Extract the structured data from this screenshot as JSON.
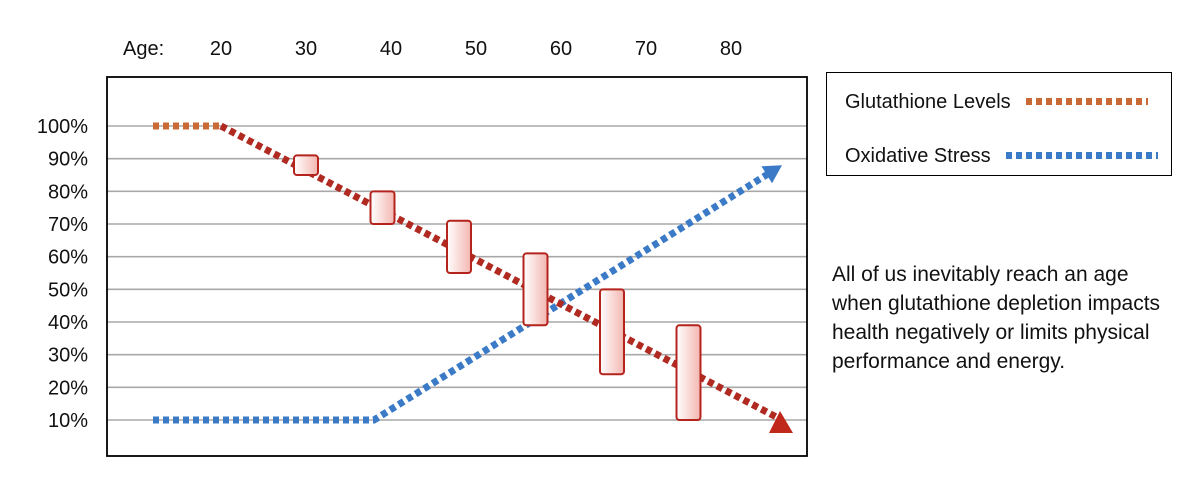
{
  "chart_data": {
    "type": "line",
    "xlabel": "Age:",
    "x_ticks": [
      20,
      30,
      40,
      50,
      60,
      70,
      80
    ],
    "xlim": [
      12,
      86
    ],
    "ylim": [
      0,
      100
    ],
    "y_ticks": [
      10,
      20,
      30,
      40,
      50,
      60,
      70,
      80,
      90,
      100
    ],
    "y_tick_labels": [
      "10%",
      "20%",
      "30%",
      "40%",
      "50%",
      "60%",
      "70%",
      "80%",
      "90%",
      "100%"
    ],
    "grid": true,
    "legend_position": "top-right, outside",
    "series": [
      {
        "name": "Glutathione Levels",
        "points": [
          [
            12,
            100
          ],
          [
            20,
            100
          ],
          [
            86,
            10
          ]
        ],
        "dashed_segments": [
          {
            "from": [
              12,
              100
            ],
            "to": [
              20,
              100
            ],
            "color": "#c96a36"
          },
          {
            "from": [
              20,
              100
            ],
            "to": [
              86,
              10
            ],
            "color": "#b02a22"
          }
        ],
        "end_marker": "triangle-up",
        "marker_color": "#c0281c"
      },
      {
        "name": "Oxidative Stress",
        "points": [
          [
            12,
            10
          ],
          [
            38,
            10
          ],
          [
            86,
            88
          ]
        ],
        "color": "#3b7ac6",
        "end_marker": "arrow"
      }
    ],
    "range_bars": [
      {
        "x": 30,
        "low": 85,
        "high": 91
      },
      {
        "x": 39,
        "low": 70,
        "high": 80
      },
      {
        "x": 48,
        "low": 55,
        "high": 71
      },
      {
        "x": 57,
        "low": 39,
        "high": 61
      },
      {
        "x": 66,
        "low": 24,
        "high": 50
      },
      {
        "x": 75,
        "low": 10,
        "high": 39
      }
    ],
    "range_bar_color": "#b4231c",
    "range_bar_fill": [
      "#ffffff",
      "#f3b6b0"
    ]
  },
  "legend": {
    "items": [
      {
        "label": "Glutathione Levels",
        "color": "#c96a36"
      },
      {
        "label": "Oxidative Stress",
        "color": "#3b7ac6"
      }
    ]
  },
  "annotation": "All of us inevitably reach an age when glutathione depletion impacts health negatively or limits physical performance and energy."
}
